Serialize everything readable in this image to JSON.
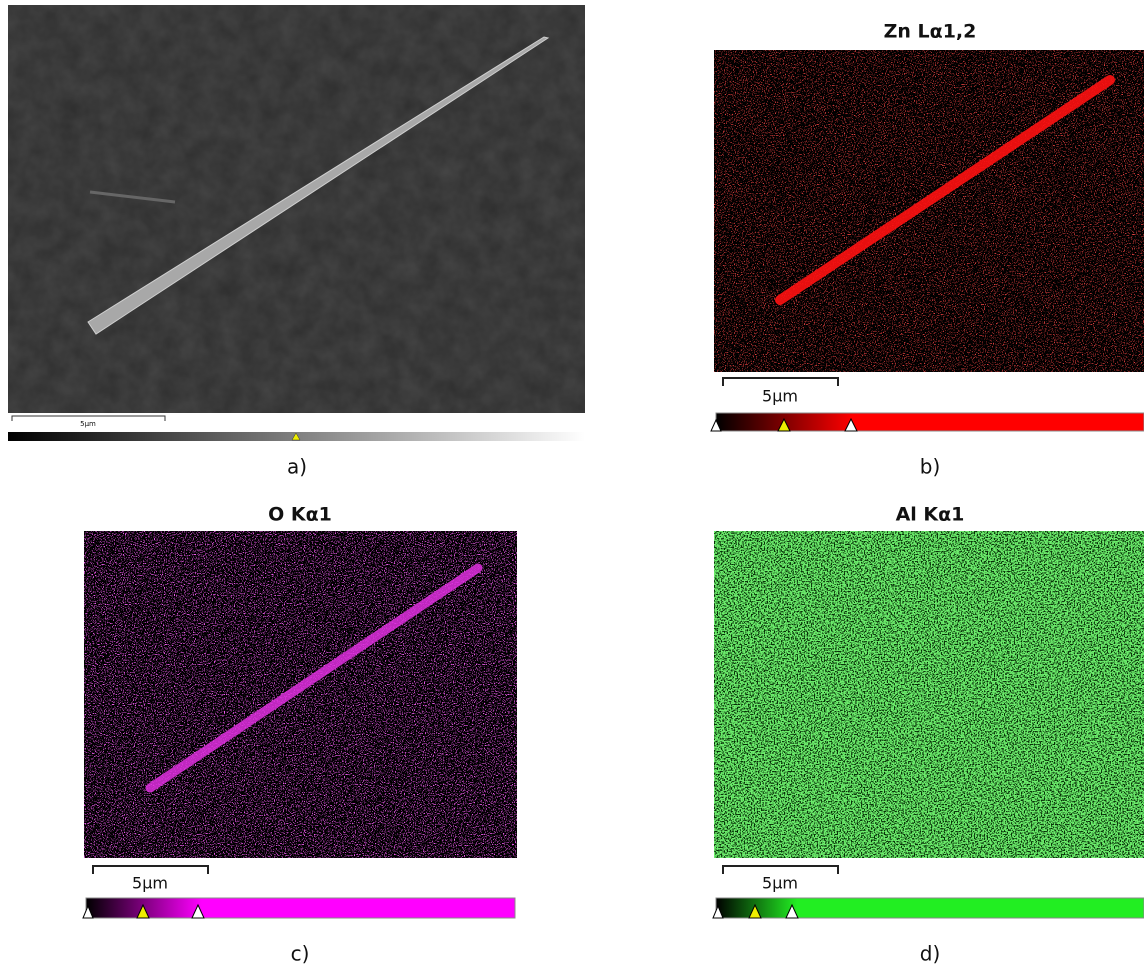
{
  "panels": [
    {
      "scale_label": "5µm",
      "label": "a)"
    },
    {
      "title": "Zn Lα1,2",
      "scale_label": "5μm",
      "label": "b)"
    },
    {
      "title": "O Kα1",
      "scale_label": "5μm",
      "label": "c)"
    },
    {
      "title": "Al Kα1",
      "scale_label": "5μm",
      "label": "d)"
    }
  ]
}
